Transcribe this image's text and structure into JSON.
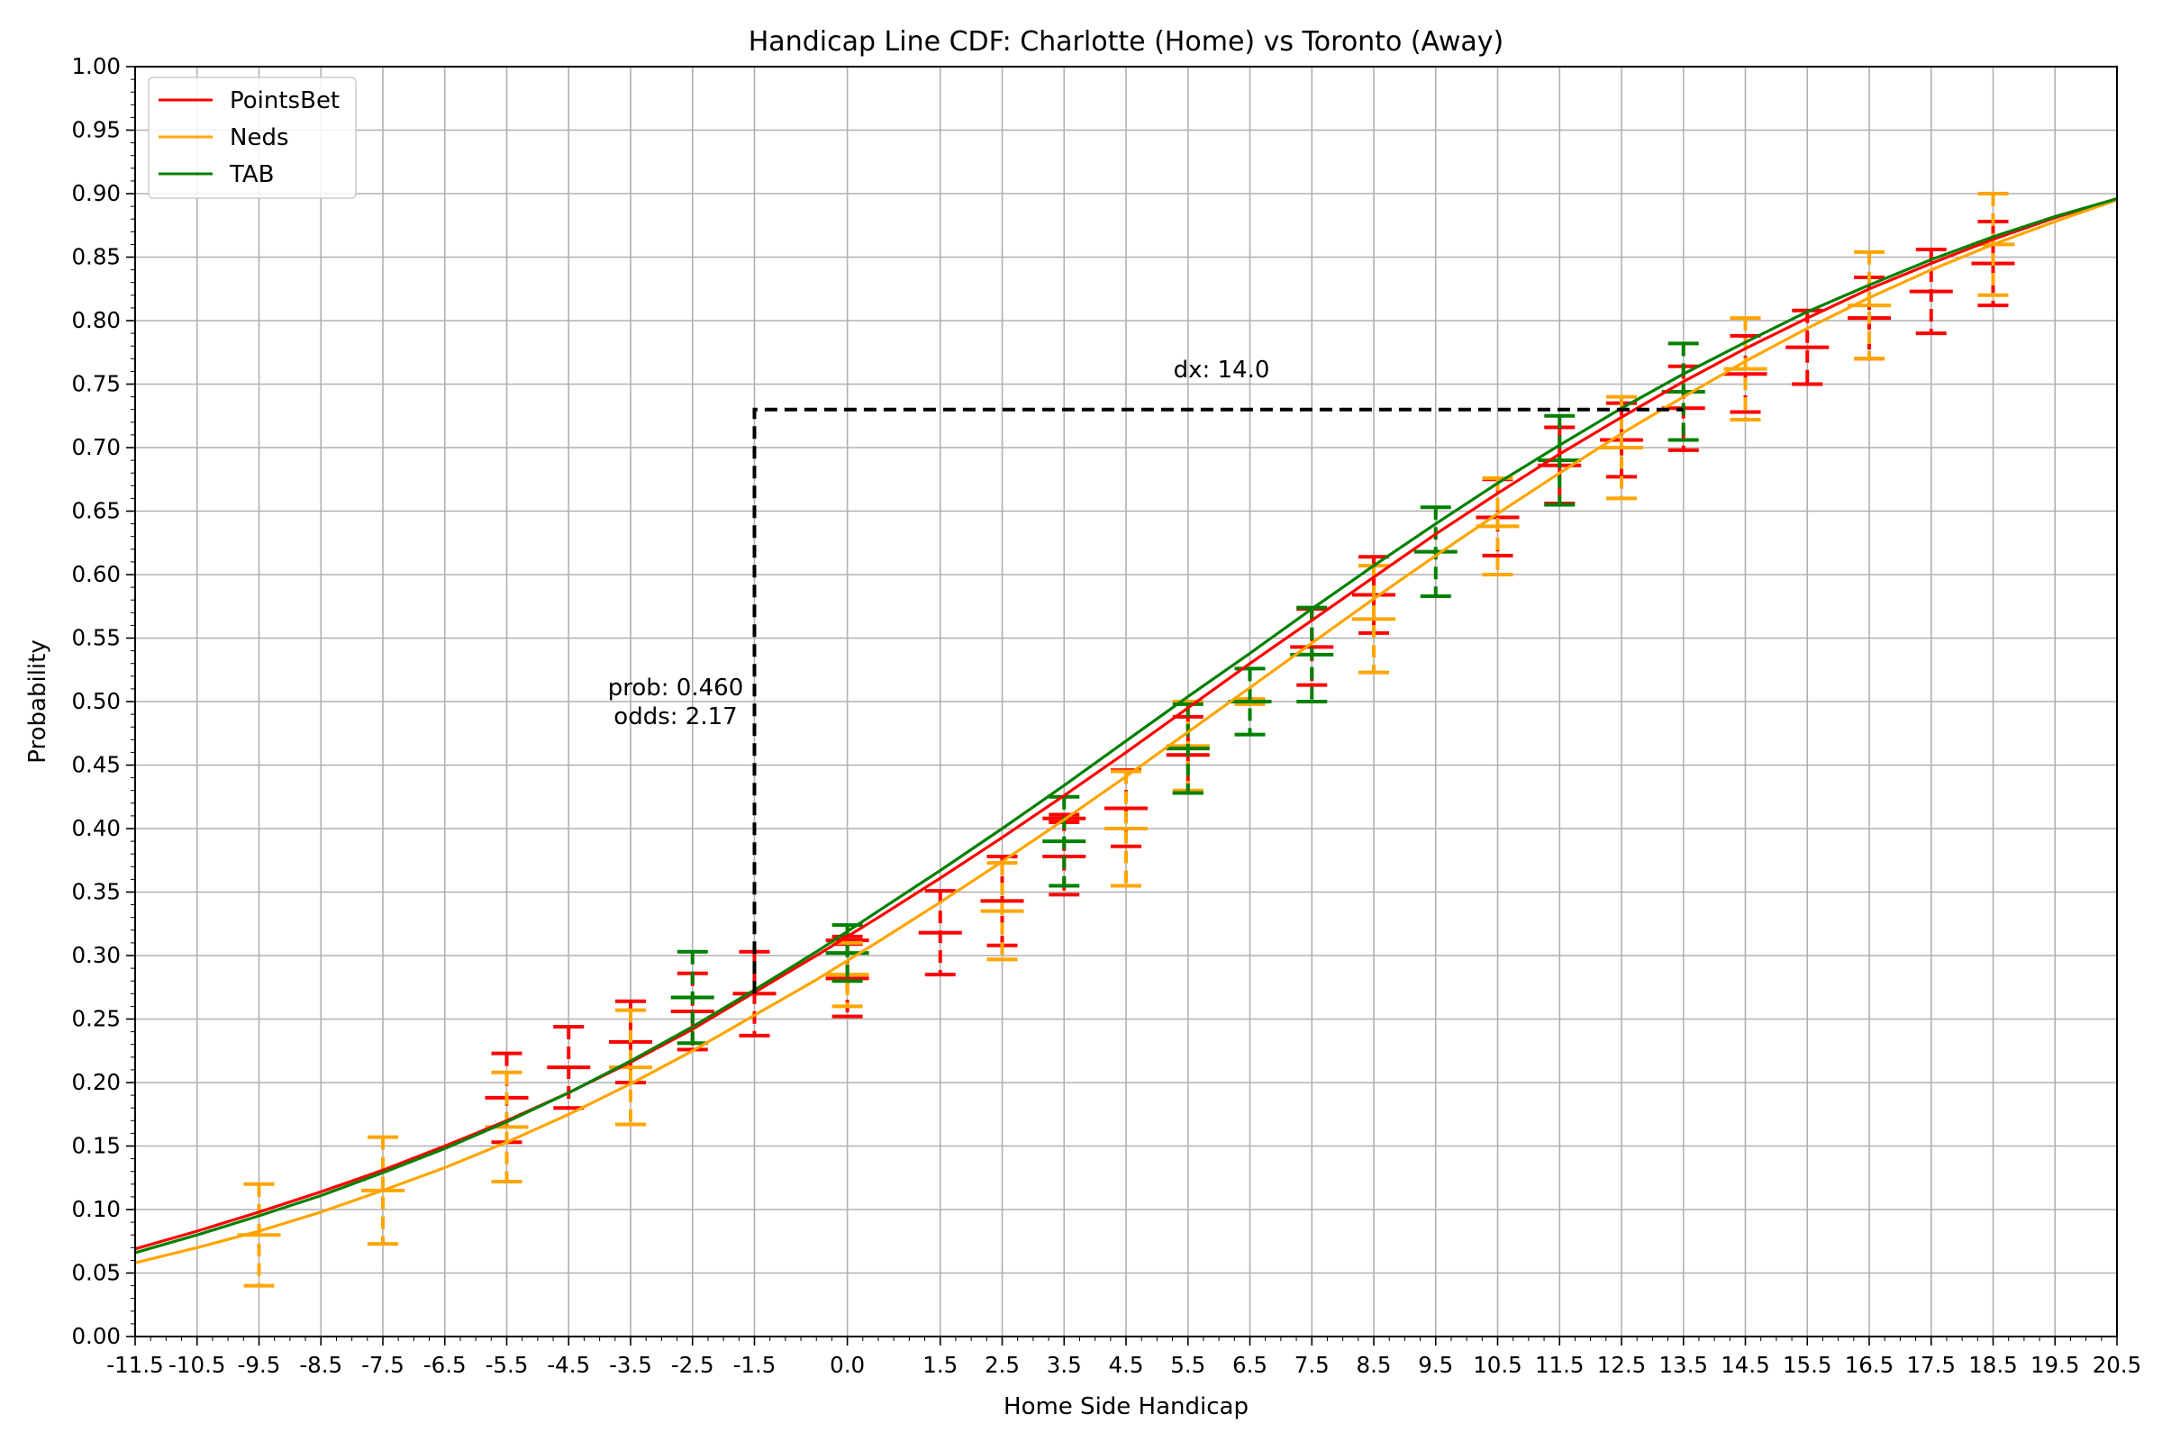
{
  "chart_data": {
    "type": "line",
    "title": "Handicap Line CDF: Charlotte (Home) vs Toronto (Away)",
    "xlabel": "Home Side Handicap",
    "ylabel": "Probability",
    "xlim": [
      -11.5,
      20.5
    ],
    "ylim": [
      0.0,
      1.0
    ],
    "grid": true,
    "legend_position": "top-left",
    "x_ticks": [
      "-11.5",
      "-10.5",
      "-9.5",
      "-8.5",
      "-7.5",
      "-6.5",
      "-5.5",
      "-4.5",
      "-3.5",
      "-2.5",
      "-1.5",
      "0.0",
      "1.5",
      "2.5",
      "3.5",
      "4.5",
      "5.5",
      "6.5",
      "7.5",
      "8.5",
      "9.5",
      "10.5",
      "11.5",
      "12.5",
      "13.5",
      "14.5",
      "15.5",
      "16.5",
      "17.5",
      "18.5",
      "19.5",
      "20.5"
    ],
    "y_ticks": [
      "0.00",
      "0.05",
      "0.10",
      "0.15",
      "0.20",
      "0.25",
      "0.30",
      "0.35",
      "0.40",
      "0.45",
      "0.50",
      "0.55",
      "0.60",
      "0.65",
      "0.70",
      "0.75",
      "0.80",
      "0.85",
      "0.90",
      "0.95",
      "1.00"
    ],
    "series": [
      {
        "name": "PointsBet",
        "color": "#ff0000",
        "curve": [
          [
            -11.5,
            0.069
          ],
          [
            -10.5,
            0.083
          ],
          [
            -9.5,
            0.098
          ],
          [
            -8.5,
            0.114
          ],
          [
            -7.5,
            0.131
          ],
          [
            -6.5,
            0.15
          ],
          [
            -5.5,
            0.17
          ],
          [
            -4.5,
            0.192
          ],
          [
            -3.5,
            0.216
          ],
          [
            -2.5,
            0.242
          ],
          [
            -1.5,
            0.271
          ],
          [
            -0.5,
            0.3
          ],
          [
            0.5,
            0.33
          ],
          [
            1.5,
            0.361
          ],
          [
            2.5,
            0.393
          ],
          [
            3.5,
            0.426
          ],
          [
            4.5,
            0.46
          ],
          [
            5.5,
            0.495
          ],
          [
            6.5,
            0.53
          ],
          [
            7.5,
            0.564
          ],
          [
            8.5,
            0.598
          ],
          [
            9.5,
            0.632
          ],
          [
            10.5,
            0.664
          ],
          [
            11.5,
            0.695
          ],
          [
            12.5,
            0.724
          ],
          [
            13.5,
            0.752
          ],
          [
            14.5,
            0.778
          ],
          [
            15.5,
            0.802
          ],
          [
            16.5,
            0.825
          ],
          [
            17.5,
            0.845
          ],
          [
            18.5,
            0.864
          ],
          [
            19.5,
            0.881
          ],
          [
            20.5,
            0.896
          ]
        ],
        "points": [
          {
            "x": -5.5,
            "y": 0.188,
            "err": 0.035
          },
          {
            "x": -4.5,
            "y": 0.212,
            "err": 0.032
          },
          {
            "x": -3.5,
            "y": 0.232,
            "err": 0.032
          },
          {
            "x": -2.5,
            "y": 0.256,
            "err": 0.03
          },
          {
            "x": -1.5,
            "y": 0.27,
            "err": 0.033
          },
          {
            "x": 0.0,
            "y": 0.282,
            "err": 0.03
          },
          {
            "x": 0.0,
            "y": 0.312,
            "err": 0.003
          },
          {
            "x": 1.5,
            "y": 0.318,
            "err": 0.033
          },
          {
            "x": 2.5,
            "y": 0.343,
            "err": 0.035
          },
          {
            "x": 3.5,
            "y": 0.378,
            "err": 0.03
          },
          {
            "x": 3.5,
            "y": 0.408,
            "err": 0.003
          },
          {
            "x": 4.5,
            "y": 0.416,
            "err": 0.03
          },
          {
            "x": 5.5,
            "y": 0.458,
            "err": 0.03
          },
          {
            "x": 7.5,
            "y": 0.543,
            "err": 0.03
          },
          {
            "x": 8.5,
            "y": 0.584,
            "err": 0.03
          },
          {
            "x": 10.5,
            "y": 0.645,
            "err": 0.03
          },
          {
            "x": 11.5,
            "y": 0.686,
            "err": 0.03
          },
          {
            "x": 12.5,
            "y": 0.706,
            "err": 0.029
          },
          {
            "x": 13.5,
            "y": 0.731,
            "err": 0.033
          },
          {
            "x": 14.5,
            "y": 0.758,
            "err": 0.03
          },
          {
            "x": 15.5,
            "y": 0.779,
            "err": 0.029
          },
          {
            "x": 16.5,
            "y": 0.802,
            "err": 0.032
          },
          {
            "x": 17.5,
            "y": 0.823,
            "err": 0.033
          },
          {
            "x": 18.5,
            "y": 0.845,
            "err": 0.033
          }
        ]
      },
      {
        "name": "Neds",
        "color": "#ffa500",
        "curve": [
          [
            -11.5,
            0.058
          ],
          [
            -10.5,
            0.07
          ],
          [
            -9.5,
            0.083
          ],
          [
            -8.5,
            0.098
          ],
          [
            -7.5,
            0.115
          ],
          [
            -6.5,
            0.133
          ],
          [
            -5.5,
            0.153
          ],
          [
            -4.5,
            0.175
          ],
          [
            -3.5,
            0.199
          ],
          [
            -2.5,
            0.225
          ],
          [
            -1.5,
            0.253
          ],
          [
            -0.5,
            0.281
          ],
          [
            0.5,
            0.311
          ],
          [
            1.5,
            0.342
          ],
          [
            2.5,
            0.374
          ],
          [
            3.5,
            0.407
          ],
          [
            4.5,
            0.441
          ],
          [
            5.5,
            0.476
          ],
          [
            6.5,
            0.511
          ],
          [
            7.5,
            0.546
          ],
          [
            8.5,
            0.581
          ],
          [
            9.5,
            0.615
          ],
          [
            10.5,
            0.648
          ],
          [
            11.5,
            0.68
          ],
          [
            12.5,
            0.711
          ],
          [
            13.5,
            0.74
          ],
          [
            14.5,
            0.768
          ],
          [
            15.5,
            0.794
          ],
          [
            16.5,
            0.818
          ],
          [
            17.5,
            0.84
          ],
          [
            18.5,
            0.86
          ],
          [
            19.5,
            0.878
          ],
          [
            20.5,
            0.895
          ]
        ],
        "points": [
          {
            "x": -9.5,
            "y": 0.08,
            "err": 0.04
          },
          {
            "x": -7.5,
            "y": 0.115,
            "err": 0.042
          },
          {
            "x": -5.5,
            "y": 0.165,
            "err": 0.043
          },
          {
            "x": -3.5,
            "y": 0.212,
            "err": 0.045
          },
          {
            "x": 0.0,
            "y": 0.285,
            "err": 0.025
          },
          {
            "x": 2.5,
            "y": 0.335,
            "err": 0.038
          },
          {
            "x": 4.5,
            "y": 0.4,
            "err": 0.045
          },
          {
            "x": 5.5,
            "y": 0.465,
            "err": 0.035
          },
          {
            "x": 6.5,
            "y": 0.5,
            "err": 0.002
          },
          {
            "x": 8.5,
            "y": 0.565,
            "err": 0.042
          },
          {
            "x": 10.5,
            "y": 0.638,
            "err": 0.038
          },
          {
            "x": 12.5,
            "y": 0.7,
            "err": 0.04
          },
          {
            "x": 14.5,
            "y": 0.762,
            "err": 0.04
          },
          {
            "x": 16.5,
            "y": 0.812,
            "err": 0.042
          },
          {
            "x": 18.5,
            "y": 0.86,
            "err": 0.04
          }
        ]
      },
      {
        "name": "TAB",
        "color": "#008000",
        "curve": [
          [
            -11.5,
            0.066
          ],
          [
            -10.5,
            0.08
          ],
          [
            -9.5,
            0.095
          ],
          [
            -8.5,
            0.111
          ],
          [
            -7.5,
            0.129
          ],
          [
            -6.5,
            0.148
          ],
          [
            -5.5,
            0.169
          ],
          [
            -4.5,
            0.192
          ],
          [
            -3.5,
            0.217
          ],
          [
            -2.5,
            0.244
          ],
          [
            -1.5,
            0.273
          ],
          [
            -0.5,
            0.303
          ],
          [
            0.5,
            0.335
          ],
          [
            1.5,
            0.367
          ],
          [
            2.5,
            0.4
          ],
          [
            3.5,
            0.434
          ],
          [
            4.5,
            0.469
          ],
          [
            5.5,
            0.504
          ],
          [
            6.5,
            0.538
          ],
          [
            7.5,
            0.573
          ],
          [
            8.5,
            0.607
          ],
          [
            9.5,
            0.64
          ],
          [
            10.5,
            0.672
          ],
          [
            11.5,
            0.702
          ],
          [
            12.5,
            0.731
          ],
          [
            13.5,
            0.758
          ],
          [
            14.5,
            0.783
          ],
          [
            15.5,
            0.807
          ],
          [
            16.5,
            0.828
          ],
          [
            17.5,
            0.848
          ],
          [
            18.5,
            0.866
          ],
          [
            19.5,
            0.882
          ],
          [
            20.5,
            0.896
          ]
        ],
        "points": [
          {
            "x": -2.5,
            "y": 0.267,
            "err": 0.036
          },
          {
            "x": 0.0,
            "y": 0.302,
            "err": 0.022
          },
          {
            "x": 3.5,
            "y": 0.39,
            "err": 0.035
          },
          {
            "x": 5.5,
            "y": 0.463,
            "err": 0.035
          },
          {
            "x": 6.5,
            "y": 0.5,
            "err": 0.026
          },
          {
            "x": 7.5,
            "y": 0.537,
            "err": 0.037
          },
          {
            "x": 9.5,
            "y": 0.618,
            "err": 0.035
          },
          {
            "x": 11.5,
            "y": 0.69,
            "err": 0.035
          },
          {
            "x": 13.5,
            "y": 0.744,
            "err": 0.038
          }
        ]
      }
    ],
    "annotations": {
      "prob_label": "prob: 0.460",
      "odds_label": "odds: 2.17",
      "dx_label": "dx: 14.0",
      "guide_line": {
        "x_start": -1.5,
        "y_start": 0.27,
        "y_level": 0.73,
        "x_end": 13.5
      }
    }
  }
}
